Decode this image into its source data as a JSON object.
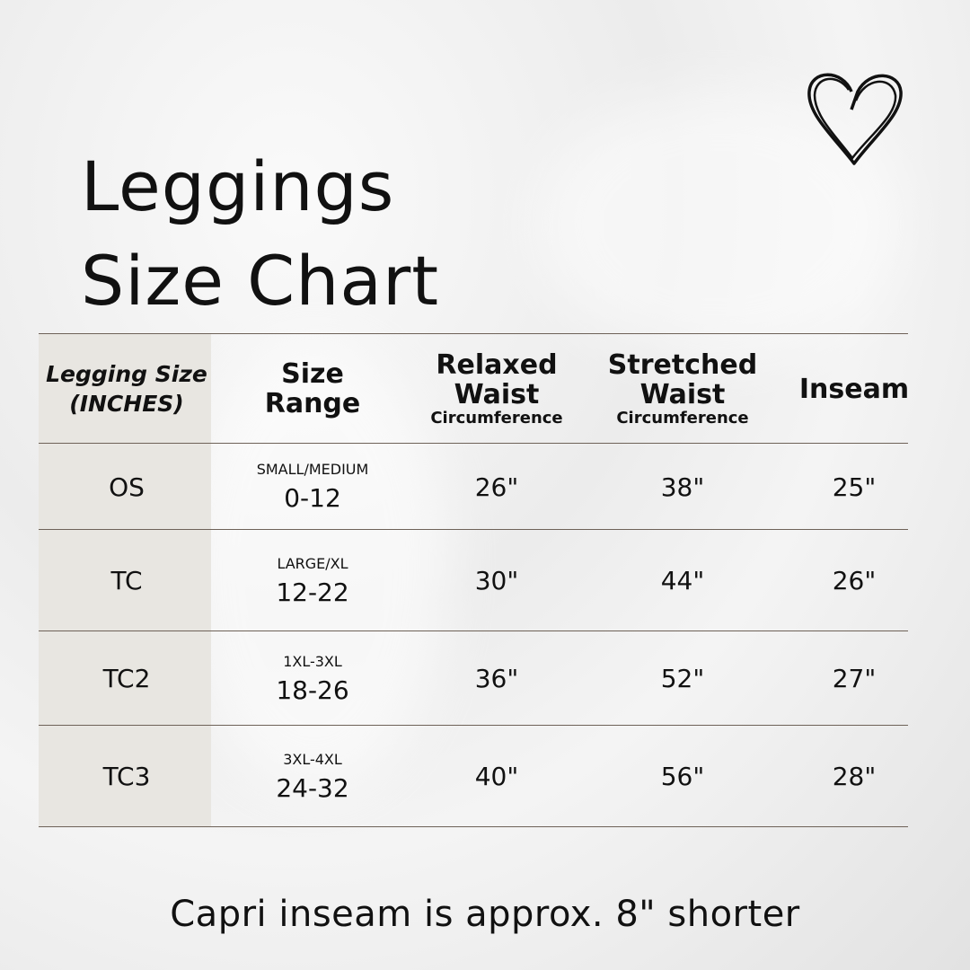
{
  "title": {
    "line1": "Leggings",
    "line2": "Size Chart"
  },
  "decoration": {
    "icon": "heart-icon"
  },
  "table": {
    "headers": [
      {
        "line1": "Legging Size",
        "line2": "(INCHES)"
      },
      {
        "line1": "Size",
        "line2": "Range"
      },
      {
        "line1": "Relaxed",
        "line2": "Waist",
        "sub": "Circumference"
      },
      {
        "line1": "Stretched",
        "line2": "Waist",
        "sub": "Circumference"
      },
      {
        "line1": "Inseam"
      }
    ],
    "rows": [
      {
        "size": "OS",
        "label": "SMALL/MEDIUM",
        "range": "0-12",
        "relaxed": "26\"",
        "stretched": "38\"",
        "inseam": "25\""
      },
      {
        "size": "TC",
        "label": "LARGE/XL",
        "range": "12-22",
        "relaxed": "30\"",
        "stretched": "44\"",
        "inseam": "26\""
      },
      {
        "size": "TC2",
        "label": "1XL-3XL",
        "range": "18-26",
        "relaxed": "36\"",
        "stretched": "52\"",
        "inseam": "27\""
      },
      {
        "size": "TC3",
        "label": "3XL-4XL",
        "range": "24-32",
        "relaxed": "40\"",
        "stretched": "56\"",
        "inseam": "28\""
      }
    ]
  },
  "footer": "Capri inseam is approx. 8\" shorter",
  "colors": {
    "first_column_bg": "#e8e6e1",
    "rule": "#6e6258"
  }
}
